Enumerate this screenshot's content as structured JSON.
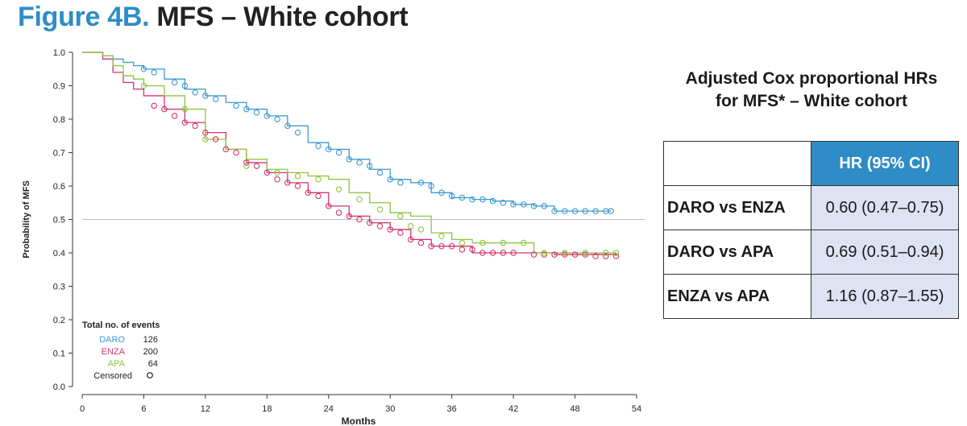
{
  "title": {
    "lead": "Figure 4B.",
    "rest": "MFS – White cohort"
  },
  "chart_data": {
    "type": "line",
    "xlabel": "Months",
    "ylabel": "Probability of MFS",
    "xlim": [
      0,
      54
    ],
    "ylim": [
      0,
      1.0
    ],
    "xticks": [
      "0",
      "6",
      "12",
      "18",
      "24",
      "30",
      "36",
      "42",
      "48",
      "54"
    ],
    "yticks": [
      "0.0",
      "0.1",
      "0.2",
      "0.3",
      "0.4",
      "0.5",
      "0.6",
      "0.7",
      "0.8",
      "0.9",
      "1.0"
    ],
    "reference_line": 0.5,
    "series": [
      {
        "name": "DARO",
        "color": "#3a9bd0",
        "x": [
          0,
          1.5,
          2,
          3,
          4,
          5,
          6,
          8,
          10,
          12,
          14,
          16,
          18,
          20,
          22,
          24,
          26,
          28,
          30,
          32,
          34,
          36,
          38,
          40,
          42,
          44,
          46,
          48,
          50,
          51.5
        ],
        "y": [
          1.0,
          1.0,
          0.99,
          0.98,
          0.97,
          0.96,
          0.95,
          0.92,
          0.89,
          0.87,
          0.85,
          0.83,
          0.81,
          0.78,
          0.73,
          0.71,
          0.68,
          0.65,
          0.62,
          0.61,
          0.58,
          0.565,
          0.56,
          0.555,
          0.545,
          0.54,
          0.525,
          0.525,
          0.525,
          0.525
        ]
      },
      {
        "name": "ENZA",
        "color": "#d6336c",
        "x": [
          0,
          1.5,
          2,
          3,
          4,
          5,
          6,
          8,
          10,
          12,
          14,
          16,
          18,
          20,
          22,
          24,
          26,
          28,
          30,
          32,
          34,
          36,
          38,
          40,
          42,
          44,
          46,
          48,
          50,
          52
        ],
        "y": [
          1.0,
          1.0,
          0.98,
          0.94,
          0.91,
          0.89,
          0.87,
          0.83,
          0.79,
          0.76,
          0.71,
          0.67,
          0.64,
          0.61,
          0.58,
          0.54,
          0.51,
          0.49,
          0.47,
          0.44,
          0.42,
          0.42,
          0.4,
          0.4,
          0.4,
          0.4,
          0.395,
          0.395,
          0.395,
          0.39
        ]
      },
      {
        "name": "APA",
        "color": "#8cc63f",
        "x": [
          0,
          1.5,
          2,
          3,
          4,
          5,
          6,
          8,
          10,
          12,
          14,
          16,
          18,
          20,
          22,
          24,
          26,
          28,
          30,
          32,
          34,
          36,
          38,
          40,
          42,
          43,
          44,
          46,
          48,
          52
        ],
        "y": [
          1.0,
          1.0,
          0.99,
          0.96,
          0.93,
          0.92,
          0.9,
          0.87,
          0.83,
          0.74,
          0.71,
          0.68,
          0.65,
          0.64,
          0.63,
          0.62,
          0.58,
          0.55,
          0.52,
          0.51,
          0.46,
          0.44,
          0.43,
          0.43,
          0.43,
          0.43,
          0.4,
          0.4,
          0.4,
          0.4
        ]
      }
    ],
    "censored": [
      {
        "series": "DARO",
        "x": [
          6,
          7,
          9,
          10,
          11,
          12,
          13,
          15,
          16,
          17,
          18,
          19,
          20,
          21,
          23,
          24,
          25,
          26,
          27,
          28,
          29,
          30,
          31,
          33,
          34,
          35,
          36,
          37,
          38,
          39,
          40,
          41,
          42,
          43,
          44,
          45,
          46,
          47,
          48,
          49,
          50,
          51,
          51.5
        ],
        "y": [
          0.95,
          0.94,
          0.91,
          0.9,
          0.88,
          0.87,
          0.86,
          0.84,
          0.83,
          0.82,
          0.81,
          0.8,
          0.78,
          0.76,
          0.72,
          0.71,
          0.7,
          0.68,
          0.67,
          0.66,
          0.64,
          0.62,
          0.61,
          0.61,
          0.6,
          0.58,
          0.57,
          0.565,
          0.56,
          0.56,
          0.555,
          0.55,
          0.545,
          0.545,
          0.54,
          0.54,
          0.525,
          0.525,
          0.525,
          0.525,
          0.525,
          0.525,
          0.525
        ]
      },
      {
        "series": "ENZA",
        "x": [
          7,
          8,
          9,
          10,
          11,
          12,
          13,
          14,
          15,
          16,
          17,
          18,
          19,
          20,
          21,
          22,
          23,
          24,
          25,
          26,
          27,
          28,
          29,
          30,
          31,
          32,
          33,
          34,
          35,
          36,
          37,
          38,
          39,
          40,
          41,
          42,
          44,
          45,
          46,
          47,
          48,
          49,
          50,
          51,
          52
        ],
        "y": [
          0.84,
          0.83,
          0.81,
          0.79,
          0.78,
          0.76,
          0.74,
          0.71,
          0.7,
          0.67,
          0.66,
          0.64,
          0.62,
          0.61,
          0.6,
          0.58,
          0.57,
          0.54,
          0.52,
          0.51,
          0.5,
          0.49,
          0.48,
          0.47,
          0.46,
          0.44,
          0.43,
          0.42,
          0.42,
          0.42,
          0.41,
          0.41,
          0.4,
          0.4,
          0.4,
          0.4,
          0.395,
          0.395,
          0.395,
          0.395,
          0.395,
          0.395,
          0.39,
          0.39,
          0.39
        ]
      },
      {
        "series": "APA",
        "x": [
          6,
          10,
          12,
          16,
          19,
          21,
          23,
          25,
          27,
          29,
          31,
          32,
          33,
          35,
          37,
          39,
          41,
          43,
          45,
          47,
          49,
          51,
          52
        ],
        "y": [
          0.9,
          0.83,
          0.74,
          0.66,
          0.64,
          0.63,
          0.62,
          0.59,
          0.56,
          0.53,
          0.51,
          0.48,
          0.47,
          0.45,
          0.43,
          0.43,
          0.43,
          0.43,
          0.4,
          0.4,
          0.4,
          0.4,
          0.4
        ]
      }
    ],
    "legend": {
      "title": "Total no. of events",
      "entries": [
        {
          "label": "DARO",
          "value": "126",
          "color": "#3a9bd0"
        },
        {
          "label": "ENZA",
          "value": "200",
          "color": "#d6336c"
        },
        {
          "label": "APA",
          "value": "64",
          "color": "#8cc63f"
        }
      ],
      "censored_label": "Censored"
    }
  },
  "hr_panel": {
    "heading_line1": "Adjusted Cox proportional HRs",
    "heading_line2": "for MFS* – White cohort",
    "column_header": "HR (95% CI)",
    "rows": [
      {
        "comparison": "DARO vs ENZA",
        "hr": "0.60 (0.47–0.75)"
      },
      {
        "comparison": "DARO vs APA",
        "hr": "0.69 (0.51–0.94)"
      },
      {
        "comparison": "ENZA vs APA",
        "hr": "1.16 (0.87–1.55)"
      }
    ]
  }
}
